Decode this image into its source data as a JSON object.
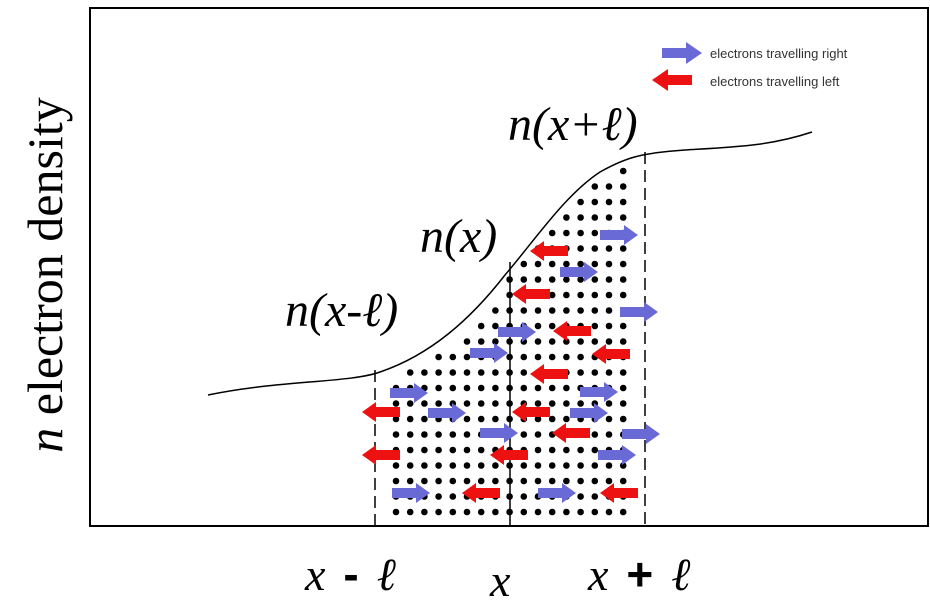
{
  "y_axis_label": {
    "var": "n",
    "text": "electron density"
  },
  "x_labels": {
    "left": {
      "var": "x",
      "sign": "-",
      "ell": "ℓ"
    },
    "center": {
      "var": "x"
    },
    "right": {
      "var": "x",
      "sign": "+",
      "ell": "ℓ"
    }
  },
  "curve_labels": {
    "left": "n(x-ℓ)",
    "center": "n(x)",
    "right": "n(x+ℓ)"
  },
  "legend": {
    "right": {
      "text": "electrons travelling right",
      "color": "#6a6ad6"
    },
    "left": {
      "text": "electrons travelling left",
      "color": "#ee1111"
    }
  },
  "colors": {
    "right_arrow": "#6a6ad6",
    "left_arrow": "#ee1111",
    "dot": "#000000",
    "frame": "#000000"
  }
}
